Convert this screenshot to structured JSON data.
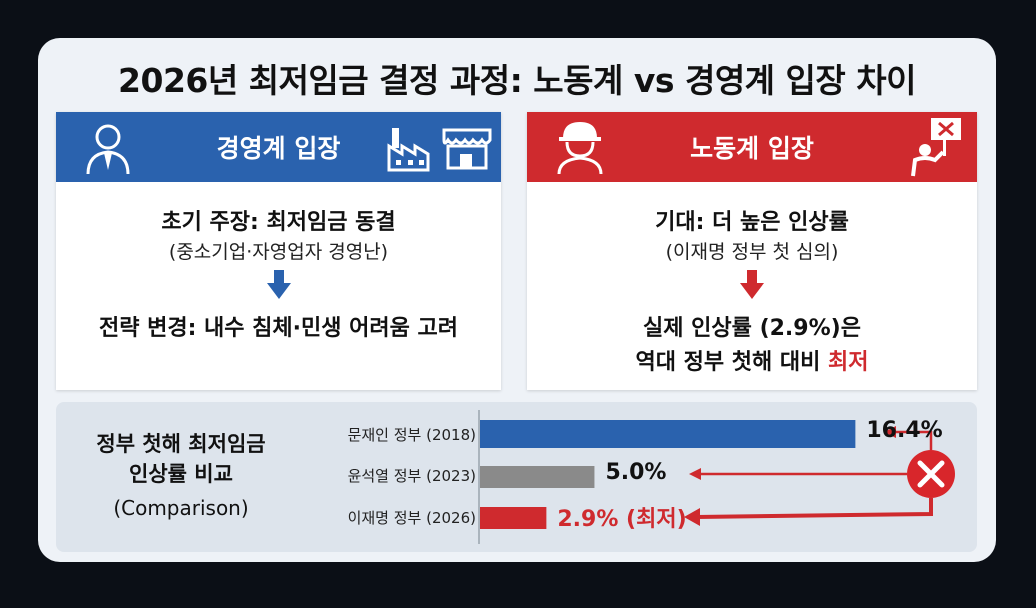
{
  "title": "2026년 최저임금 결정 과정: 노동계 vs 경영계 입장 차이",
  "left_panel": {
    "header": "경영계 입장",
    "line1": "초기 주장: 최저임금 동결",
    "line2": "(중소기업·자영업자 경영난)",
    "line3": "전략 변경: 내수 침체·민생 어려움 고려",
    "icons": [
      "businessman-icon",
      "factory-icon",
      "store-icon"
    ],
    "color": "#2a62ae"
  },
  "right_panel": {
    "header": "노동계 입장",
    "line1": "기대: 더 높은 인상률",
    "line2": "(이재명 정부 첫 심의)",
    "line3": "실제 인상률 (2.9%)은",
    "line4_prefix": "역대 정부 첫해 대비 ",
    "line4_highlight": "최저",
    "icons": [
      "worker-helmet-icon",
      "protest-sign-icon"
    ],
    "color": "#cf2a2e"
  },
  "comparison": {
    "title_line1": "정부 첫해 최저임금",
    "title_line2": "인상률 비교",
    "title_line3": "(Comparison)",
    "icon": "x-circle-icon"
  },
  "chart_data": {
    "type": "bar",
    "orientation": "horizontal",
    "categories": [
      "문재인 정부 (2018)",
      "윤석열 정부 (2023)",
      "이재명 정부 (2026)"
    ],
    "values": [
      16.4,
      5.0,
      2.9
    ],
    "value_labels": [
      "16.4%",
      "5.0%",
      "2.9% (최저)"
    ],
    "colors": [
      "#2a62ae",
      "#8a8a8a",
      "#cf2a2e"
    ],
    "xlim": [
      0,
      18
    ]
  }
}
